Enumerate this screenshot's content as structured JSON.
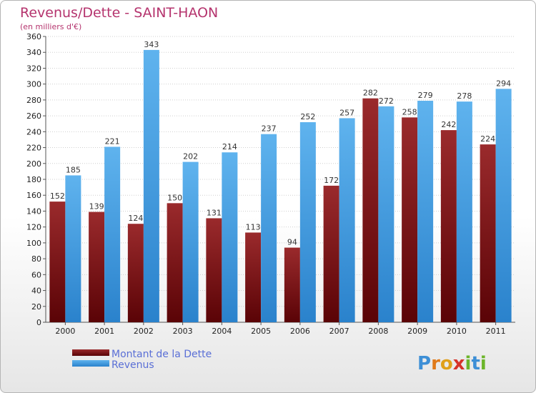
{
  "chart_data": {
    "type": "bar",
    "title": "Revenus/Dette - SAINT-HAON",
    "subtitle": "(en milliers d'€)",
    "categories": [
      "2000",
      "2001",
      "2002",
      "2003",
      "2004",
      "2005",
      "2006",
      "2007",
      "2008",
      "2009",
      "2010",
      "2011"
    ],
    "series": [
      {
        "name": "Montant de la Dette",
        "color": "#7b1216",
        "values": [
          152,
          139,
          124,
          150,
          131,
          113,
          94,
          172,
          282,
          258,
          242,
          224
        ]
      },
      {
        "name": "Revenus",
        "color": "#3d9be0",
        "values": [
          185,
          221,
          343,
          202,
          214,
          237,
          252,
          257,
          272,
          279,
          278,
          294
        ]
      }
    ],
    "ylim": [
      0,
      360
    ],
    "ytick_step": 20,
    "grid": true,
    "legend_position": "bottom-left"
  },
  "branding": {
    "logo_text": "Proxiti"
  }
}
